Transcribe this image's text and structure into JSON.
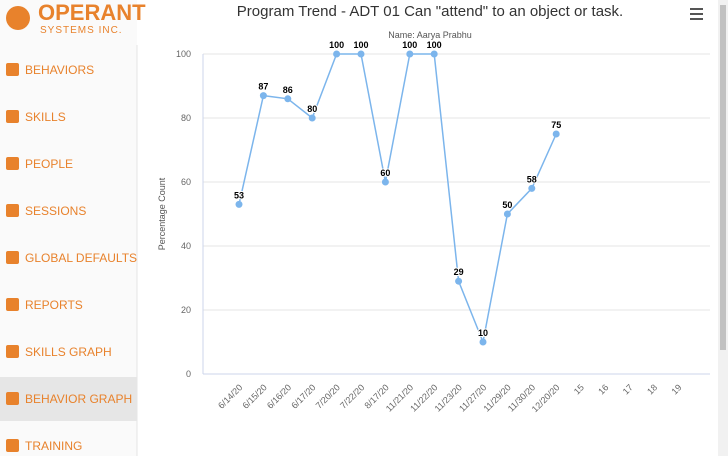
{
  "logo": {
    "name": "OPERANT",
    "tagline": "SYSTEMS INC."
  },
  "menu": [
    "BEHAVIORS",
    "SKILLS",
    "PEOPLE",
    "SESSIONS",
    "GLOBAL DEFAULTS",
    "REPORTS",
    "SKILLS GRAPH",
    "BEHAVIOR GRAPH",
    "TRAINING"
  ],
  "active_menu": "BEHAVIOR GRAPH",
  "chart_data": {
    "type": "line",
    "title": "Program Trend - ADT 01 Can \"attend\" to an object or task.",
    "subtitle": "Name: Aarya Prabhu",
    "y_label": "Percentage Count",
    "categories": [
      "6/14/20",
      "6/15/20",
      "6/16/20",
      "6/17/20",
      "7/20/20",
      "7/22/20",
      "8/17/20",
      "11/21/20",
      "11/22/20",
      "11/23/20",
      "11/27/20",
      "11/29/20",
      "11/30/20",
      "12/20/20",
      "15",
      "16",
      "17",
      "18",
      "19"
    ],
    "series": [
      {
        "name": "Percentage Count",
        "color": "#7cb5ec",
        "values": [
          53,
          87,
          86,
          80,
          100,
          100,
          60,
          100,
          100,
          29,
          10,
          50,
          58,
          75,
          null,
          null,
          null,
          null,
          null
        ]
      }
    ],
    "ylim": [
      0,
      100
    ],
    "yticks": [
      0,
      20,
      40,
      60,
      80,
      100
    ],
    "grid": true
  }
}
